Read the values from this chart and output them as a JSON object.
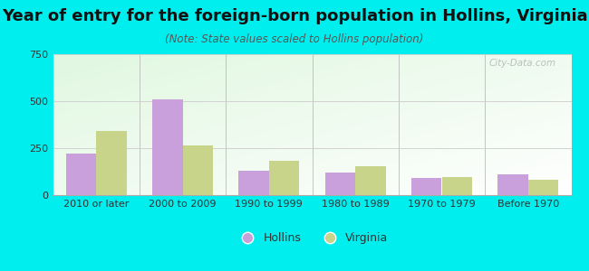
{
  "title": "Year of entry for the foreign-born population in Hollins, Virginia",
  "subtitle": "(Note: State values scaled to Hollins population)",
  "categories": [
    "2010 or later",
    "2000 to 2009",
    "1990 to 1999",
    "1980 to 1989",
    "1970 to 1979",
    "Before 1970"
  ],
  "hollins_values": [
    220,
    510,
    130,
    120,
    90,
    110
  ],
  "virginia_values": [
    340,
    265,
    185,
    155,
    95,
    80
  ],
  "hollins_color": "#c9a0dc",
  "virginia_color": "#c8d48a",
  "ylim": [
    0,
    750
  ],
  "yticks": [
    0,
    250,
    500,
    750
  ],
  "bg_color": "#00eeee",
  "title_fontsize": 13,
  "subtitle_fontsize": 8.5,
  "tick_fontsize": 8,
  "legend_fontsize": 9,
  "bar_width": 0.35,
  "watermark": "City-Data.com"
}
